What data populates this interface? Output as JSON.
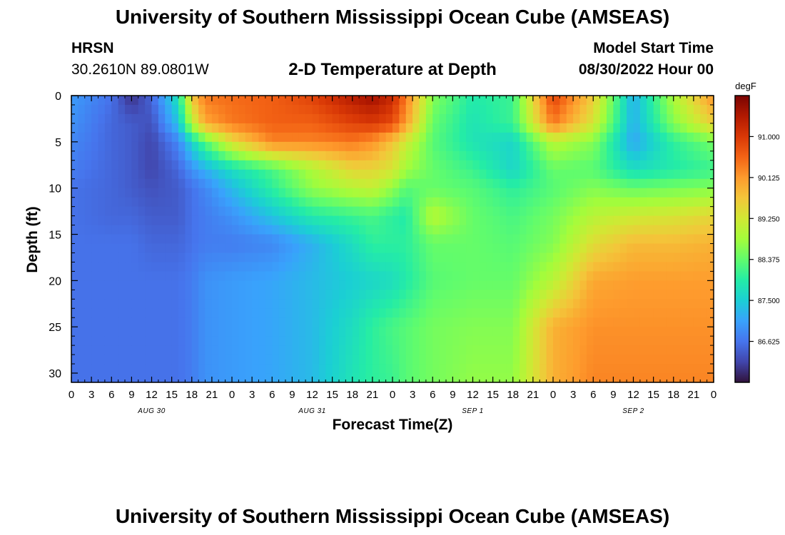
{
  "header": {
    "title": "University of Southern Mississippi Ocean Cube (AMSEAS)",
    "station": "HRSN",
    "coords": "30.2610N  89.0801W",
    "subtitle": "2-D Temperature at Depth",
    "model_label": "Model Start Time",
    "model_time": "08/30/2022 Hour 00"
  },
  "footer": {
    "title": "University of Southern Mississippi Ocean Cube (AMSEAS)"
  },
  "chart_data": {
    "type": "heatmap",
    "title": "2-D Temperature at Depth",
    "xlabel": "Forecast Time(Z)",
    "ylabel": "Depth (ft)",
    "x_range_hours": [
      0,
      96
    ],
    "x_tick_step_hours": 3,
    "x_tick_labels": [
      "0",
      "3",
      "6",
      "9",
      "12",
      "15",
      "18",
      "21",
      "0",
      "3",
      "6",
      "9",
      "12",
      "15",
      "18",
      "21",
      "0",
      "3",
      "6",
      "9",
      "12",
      "15",
      "18",
      "21",
      "0",
      "3",
      "6",
      "9",
      "12",
      "15",
      "18",
      "21",
      "0"
    ],
    "date_labels": [
      {
        "label": "AUG 30",
        "hour": 12
      },
      {
        "label": "AUG 31",
        "hour": 36
      },
      {
        "label": "SEP 1",
        "hour": 60
      },
      {
        "label": "SEP 2",
        "hour": 84
      }
    ],
    "ylim": [
      0,
      31
    ],
    "y_ticks": [
      0,
      5,
      10,
      15,
      20,
      25,
      30
    ],
    "colorbar": {
      "unit": "degF",
      "range": [
        85.75,
        91.875
      ],
      "ticks": [
        "91.000",
        "90.125",
        "89.250",
        "88.375",
        "87.500",
        "86.625"
      ],
      "tick_values": [
        91.0,
        90.125,
        89.25,
        88.375,
        87.5,
        86.625
      ],
      "colors": [
        "#30123b",
        "#4145ab",
        "#4675ed",
        "#39a2fc",
        "#1bcfd4",
        "#24eca6",
        "#61fc6c",
        "#a4fc3b",
        "#d1e834",
        "#f3c63a",
        "#fe9b2d",
        "#f36315",
        "#d93806",
        "#b11901",
        "#7a0403"
      ]
    },
    "depths_ft": [
      0,
      3,
      5,
      8,
      10,
      13,
      16,
      20,
      25,
      31
    ],
    "times_h": [
      0,
      6,
      9,
      12,
      16,
      18,
      20,
      24,
      30,
      36,
      42,
      45,
      48,
      50,
      54,
      60,
      66,
      72,
      78,
      84,
      90,
      96
    ],
    "temperature_degF": [
      [
        87.0,
        86.6,
        86.0,
        86.5,
        87.8,
        89.7,
        90.4,
        90.5,
        90.6,
        90.9,
        91.4,
        91.6,
        91.2,
        90.4,
        88.6,
        87.9,
        88.1,
        90.9,
        89.6,
        87.2,
        88.9,
        90.2
      ],
      [
        86.9,
        86.5,
        86.4,
        86.3,
        87.4,
        89.0,
        90.0,
        90.4,
        90.6,
        90.6,
        90.9,
        91.0,
        90.8,
        90.1,
        88.4,
        87.8,
        88.1,
        90.4,
        89.3,
        87.2,
        88.6,
        89.6
      ],
      [
        86.8,
        86.5,
        86.4,
        86.2,
        86.8,
        87.6,
        88.3,
        89.4,
        90.3,
        90.3,
        90.4,
        90.2,
        89.7,
        89.2,
        88.3,
        87.8,
        87.6,
        89.0,
        88.6,
        87.1,
        88.0,
        88.5
      ],
      [
        86.7,
        86.5,
        86.4,
        86.2,
        86.5,
        86.9,
        87.2,
        87.7,
        88.2,
        88.9,
        89.5,
        89.5,
        89.3,
        88.8,
        88.4,
        88.1,
        87.6,
        88.4,
        88.3,
        87.7,
        87.9,
        88.1
      ],
      [
        86.6,
        86.5,
        86.4,
        86.3,
        86.4,
        86.6,
        86.8,
        87.3,
        88.0,
        88.7,
        89.0,
        89.1,
        88.7,
        88.3,
        88.4,
        88.3,
        88.0,
        88.3,
        88.6,
        88.4,
        88.5,
        88.6
      ],
      [
        86.6,
        86.5,
        86.5,
        86.4,
        86.4,
        86.6,
        86.7,
        86.9,
        87.4,
        87.9,
        88.1,
        88.2,
        88.0,
        87.9,
        89.0,
        88.4,
        88.2,
        88.5,
        89.0,
        89.2,
        89.3,
        89.5
      ],
      [
        86.6,
        86.6,
        86.6,
        86.5,
        86.5,
        86.6,
        86.7,
        86.7,
        86.8,
        87.2,
        87.7,
        88.0,
        88.0,
        88.0,
        88.4,
        88.4,
        88.3,
        88.6,
        89.4,
        89.8,
        89.8,
        89.9
      ],
      [
        86.6,
        86.6,
        86.6,
        86.6,
        86.6,
        86.7,
        86.9,
        87.0,
        87.1,
        87.3,
        87.5,
        87.6,
        87.7,
        87.9,
        88.3,
        88.4,
        88.4,
        89.0,
        90.0,
        90.1,
        90.1,
        90.1
      ],
      [
        86.6,
        86.6,
        86.6,
        86.6,
        86.6,
        86.7,
        86.9,
        87.0,
        87.1,
        87.3,
        87.7,
        88.0,
        88.2,
        88.3,
        88.5,
        88.6,
        88.6,
        89.9,
        90.2,
        90.2,
        90.2,
        90.2
      ],
      [
        86.6,
        86.6,
        86.6,
        86.6,
        86.6,
        86.7,
        86.9,
        87.0,
        87.1,
        87.3,
        87.8,
        88.0,
        88.1,
        88.3,
        88.5,
        88.7,
        88.7,
        89.9,
        90.3,
        90.3,
        90.3,
        90.3
      ]
    ]
  }
}
